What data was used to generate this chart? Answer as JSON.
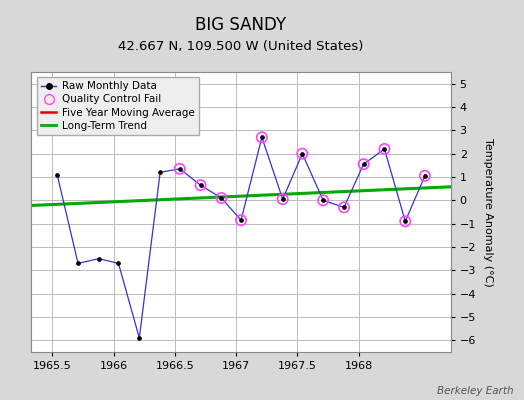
{
  "title": "BIG SANDY",
  "subtitle": "42.667 N, 109.500 W (United States)",
  "ylabel": "Temperature Anomaly (°C)",
  "credit": "Berkeley Earth",
  "xlim": [
    1965.33,
    1968.75
  ],
  "ylim": [
    -6.5,
    5.5
  ],
  "yticks": [
    -6,
    -5,
    -4,
    -3,
    -2,
    -1,
    0,
    1,
    2,
    3,
    4,
    5
  ],
  "xticks": [
    1965.5,
    1966.0,
    1966.5,
    1967.0,
    1967.5,
    1968.0
  ],
  "xticklabels": [
    "1965.5",
    "1966",
    "1966.5",
    "1967",
    "1967.5",
    "1968"
  ],
  "raw_x": [
    1965.54,
    1965.71,
    1965.88,
    1966.04,
    1966.21,
    1966.38,
    1966.54,
    1966.71,
    1966.88,
    1967.04,
    1967.21,
    1967.38,
    1967.54,
    1967.71,
    1967.88,
    1968.04,
    1968.21,
    1968.38,
    1968.54
  ],
  "raw_y": [
    1.1,
    -2.7,
    -2.5,
    -2.7,
    -5.9,
    1.2,
    1.35,
    0.65,
    0.1,
    -0.85,
    2.7,
    0.05,
    2.0,
    0.0,
    -0.3,
    1.55,
    2.2,
    -0.9,
    1.05
  ],
  "qc_fail_x": [
    1966.54,
    1966.71,
    1966.88,
    1967.04,
    1967.21,
    1967.38,
    1967.54,
    1967.71,
    1967.88,
    1968.04,
    1968.21,
    1968.38,
    1968.54
  ],
  "qc_fail_y": [
    1.35,
    0.65,
    0.1,
    -0.85,
    2.7,
    0.05,
    2.0,
    0.0,
    -0.3,
    1.55,
    2.2,
    -0.9,
    1.05
  ],
  "trend_x": [
    1965.33,
    1968.75
  ],
  "trend_y": [
    -0.22,
    0.58
  ],
  "raw_color": "#3333cc",
  "raw_marker_color": "#000000",
  "qc_color": "#ff44ff",
  "mavg_color": "#dd0000",
  "trend_color": "#00aa00",
  "bg_color": "#d8d8d8",
  "plot_bg_color": "#ffffff",
  "grid_color": "#bbbbbb",
  "title_fontsize": 12,
  "subtitle_fontsize": 9.5,
  "label_fontsize": 8,
  "tick_fontsize": 8,
  "legend_fontsize": 7.5
}
